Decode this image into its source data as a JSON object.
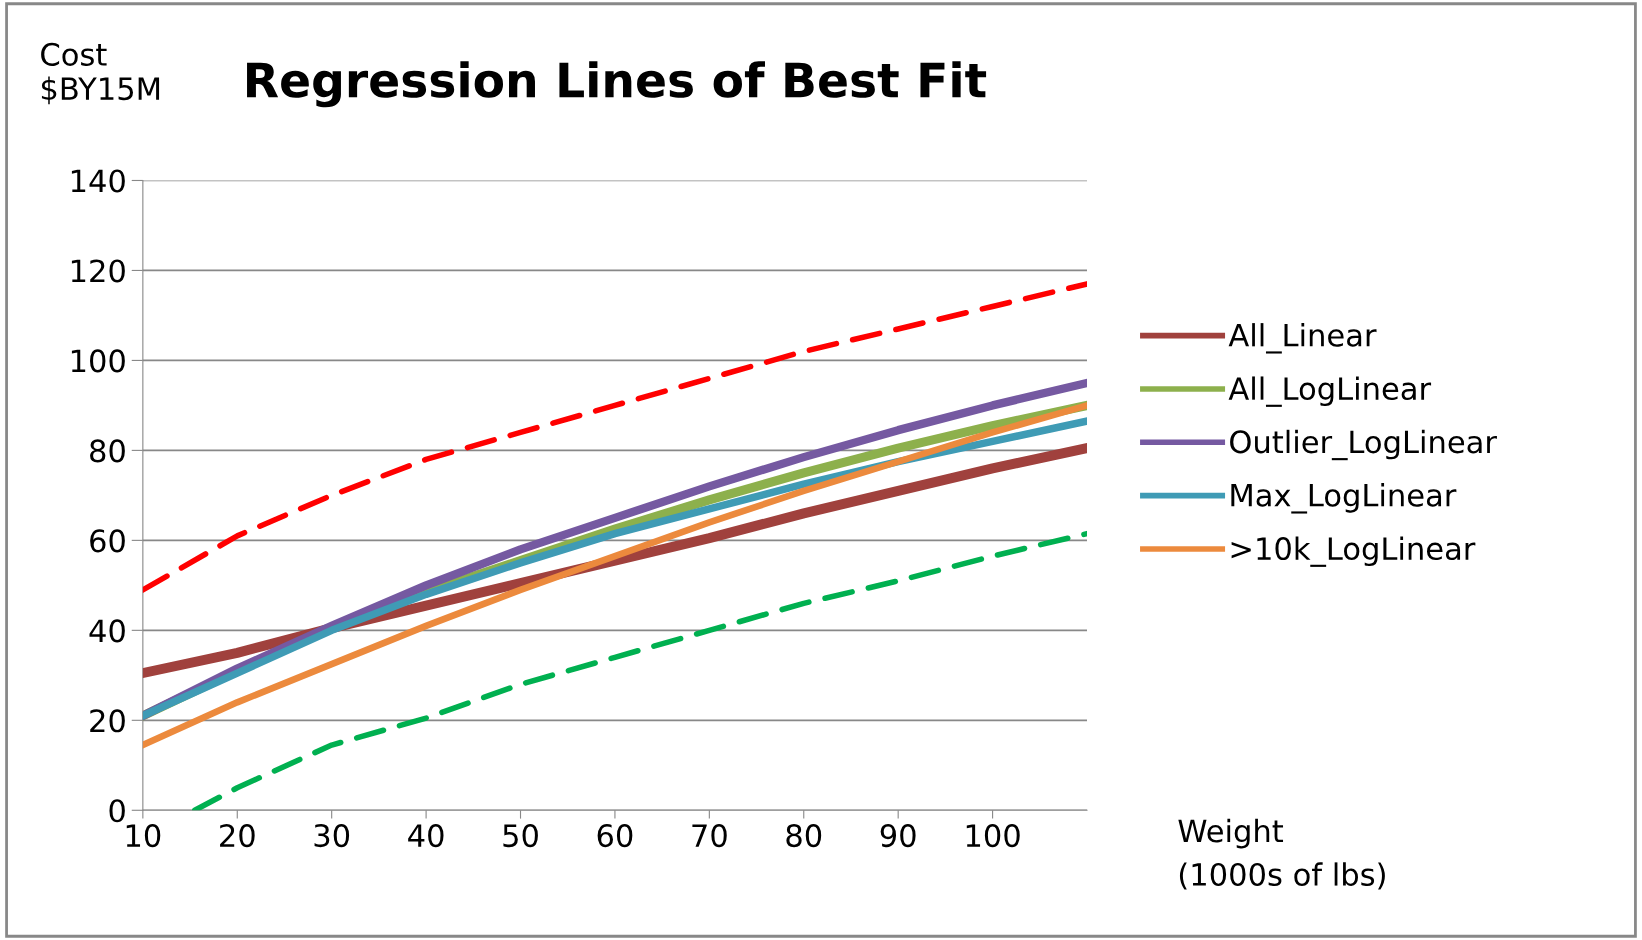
{
  "chart_data": {
    "type": "line",
    "title": "Regression Lines of Best Fit",
    "xlabel": "Weight\n(1000s of lbs)",
    "ylabel": "Cost\n$BY15M",
    "x": [
      10,
      20,
      30,
      40,
      50,
      60,
      70,
      80,
      90,
      100,
      110
    ],
    "series": [
      {
        "name": "All_Linear",
        "color": "#a0413d",
        "values": [
          30.5,
          35,
          40.5,
          45.5,
          50.5,
          55.5,
          60.5,
          66,
          71,
          76,
          80.5
        ]
      },
      {
        "name": "All_LogLinear",
        "color": "#8db04c",
        "values": [
          21,
          31,
          40.5,
          48.5,
          55.5,
          62.5,
          69,
          75,
          80.5,
          85.5,
          90
        ]
      },
      {
        "name": "Outlier_LogLinear",
        "color": "#7559a1",
        "values": [
          21,
          31.5,
          41,
          50,
          58,
          65,
          72,
          78.5,
          84.5,
          90,
          95
        ]
      },
      {
        "name": "Max_LogLinear",
        "color": "#3f9bb5",
        "values": [
          21,
          30.5,
          40,
          48,
          55,
          61.5,
          67,
          72.5,
          77.5,
          82,
          86.5
        ]
      },
      {
        "name": ">10k_LogLinear",
        "color": "#ec8a3d",
        "values": [
          14.5,
          24,
          32.5,
          41,
          49,
          56.5,
          64,
          71,
          77.5,
          84,
          90
        ]
      },
      {
        "color": "#ff0000",
        "line_style": "dashed",
        "values": [
          49,
          61,
          70,
          78,
          84,
          90,
          96,
          102,
          107,
          112,
          117
        ]
      },
      {
        "color": "#00b050",
        "line_style": "dashed",
        "x": [
          15.5,
          20,
          30,
          40,
          50,
          60,
          70,
          80,
          90,
          100,
          110
        ],
        "values": [
          0,
          5,
          14.5,
          20.5,
          28,
          34,
          40,
          46,
          51,
          56.5,
          61.5
        ]
      }
    ],
    "xlim": [
      10,
      110
    ],
    "xticks": [
      10,
      20,
      30,
      40,
      50,
      60,
      70,
      80,
      90,
      100
    ],
    "ylim": [
      0,
      140
    ],
    "yticks": [
      0,
      20,
      40,
      60,
      80,
      100,
      120,
      140
    ],
    "grid": "y",
    "legend": "right",
    "line_style": "solid",
    "marker": "none"
  }
}
